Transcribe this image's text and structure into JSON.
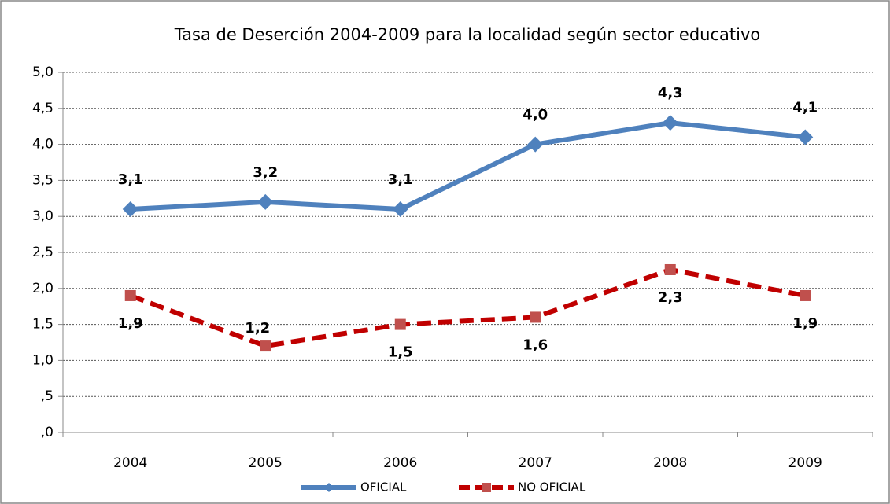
{
  "chart_data": {
    "type": "line",
    "title": "Tasa de Deserción 2004-2009 para la localidad según sector educativo",
    "categories": [
      "2004",
      "2005",
      "2006",
      "2007",
      "2008",
      "2009"
    ],
    "series": [
      {
        "name": "OFICIAL",
        "color": "#4f81bd",
        "values": [
          3.1,
          3.2,
          3.1,
          4.0,
          4.3,
          4.1
        ],
        "value_labels": [
          "3,1",
          "3,2",
          "3,1",
          "4,0",
          "4,3",
          "4,1"
        ]
      },
      {
        "name": "NO OFICIAL",
        "color": "#c00000",
        "values": [
          1.9,
          1.2,
          1.5,
          1.6,
          2.26,
          1.9
        ],
        "value_labels": [
          "1,9",
          "1,2",
          "1,5",
          "1,6",
          "2,3",
          "1,9"
        ]
      }
    ],
    "ylim": [
      0,
      5
    ],
    "yticks": [
      {
        "value": 0,
        "label": ",0"
      },
      {
        "value": 0.5,
        "label": ",5"
      },
      {
        "value": 1,
        "label": "1,0"
      },
      {
        "value": 1.5,
        "label": "1,5"
      },
      {
        "value": 2,
        "label": "2,0"
      },
      {
        "value": 2.5,
        "label": "2,5"
      },
      {
        "value": 3,
        "label": "3,0"
      },
      {
        "value": 3.5,
        "label": "3,5"
      },
      {
        "value": 4,
        "label": "4,0"
      },
      {
        "value": 4.5,
        "label": "4,5"
      },
      {
        "value": 5,
        "label": "5,0"
      }
    ],
    "grid": true,
    "legend": "bottom"
  }
}
